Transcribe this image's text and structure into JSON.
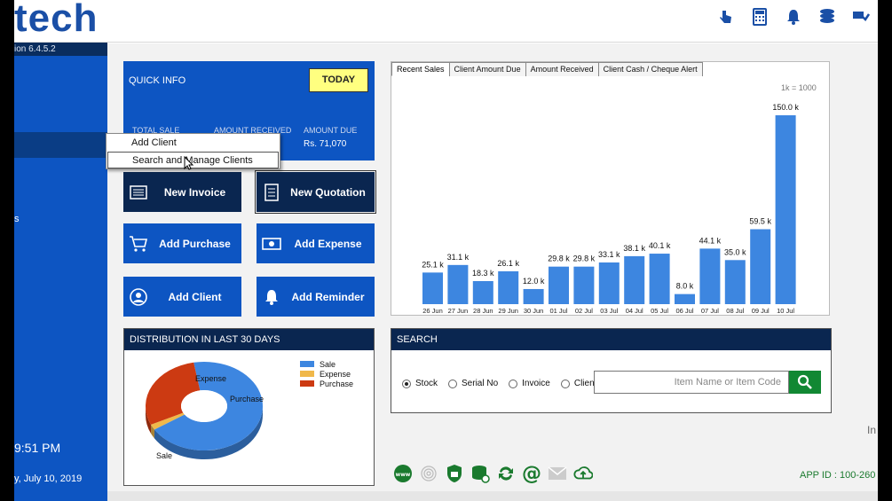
{
  "header": {
    "logo_text": "tech",
    "icons": [
      "touch-icon",
      "calculator-icon",
      "bell-icon",
      "coins-icon",
      "database-settings-icon"
    ]
  },
  "sidebar": {
    "version": "ion 6.4.5.2",
    "item_fragment": "s",
    "time": "9:51 PM",
    "date": "y, July 10, 2019"
  },
  "quick_info": {
    "title": "QUICK INFO",
    "today_button": "TODAY",
    "col1_label": "TOTAL SALE",
    "col2_label": "AMOUNT RECEIVED",
    "col3_label": "AMOUNT DUE",
    "col3_value": "Rs. 71,070"
  },
  "context_menu": {
    "items": [
      "Add Client",
      "Search and Manage Clients"
    ]
  },
  "tiles": {
    "new_invoice": "New Invoice",
    "new_quotation": "New Quotation",
    "add_purchase": "Add Purchase",
    "add_expense": "Add Expense",
    "add_client": "Add Client",
    "add_reminder": "Add Reminder"
  },
  "distribution": {
    "title": "DISTRIBUTION IN LAST 30 DAYS",
    "legend": [
      {
        "label": "Sale",
        "color": "#3d86e0"
      },
      {
        "label": "Expense",
        "color": "#f0b84a"
      },
      {
        "label": "Purchase",
        "color": "#cc3a12"
      }
    ],
    "slice_labels": {
      "sale": "Sale",
      "expense": "Expense",
      "purchase": "Purchase"
    }
  },
  "sales_tabs": [
    "Recent Sales",
    "Client Amount Due",
    "Amount Received",
    "Client Cash / Cheque Alert"
  ],
  "unit_note": "1k = 1000",
  "search": {
    "title": "SEARCH",
    "options": [
      {
        "label": "Stock",
        "selected": true
      },
      {
        "label": "Serial No",
        "selected": false
      },
      {
        "label": "Invoice",
        "selected": false
      },
      {
        "label": "Client",
        "selected": false
      }
    ],
    "placeholder": "Item Name or Item Code"
  },
  "footer": {
    "icons": [
      "www-icon",
      "fingerprint-icon",
      "shield-icon",
      "database-sync-icon",
      "refresh-icon",
      "at-icon",
      "mail-icon",
      "cloud-upload-icon"
    ],
    "app_id": "APP ID : 100-260",
    "stray_text": "In"
  },
  "chart_data": [
    {
      "type": "bar",
      "categories": [
        "26 Jun",
        "27 Jun",
        "28 Jun",
        "29 Jun",
        "30 Jun",
        "01 Jul",
        "02 Jul",
        "03 Jul",
        "04 Jul",
        "05 Jul",
        "06 Jul",
        "07 Jul",
        "08 Jul",
        "09 Jul",
        "10 Jul"
      ],
      "values": [
        25.1,
        31.1,
        18.3,
        26.1,
        12.0,
        29.8,
        29.8,
        33.1,
        38.1,
        40.1,
        8.0,
        44.1,
        35.0,
        59.5,
        150.0
      ],
      "data_labels": [
        "25.1 k",
        "31.1 k",
        "18.3 k",
        "26.1 k",
        "12.0 k",
        "29.8 k",
        "29.8 k",
        "33.1 k",
        "38.1 k",
        "40.1 k",
        "8.0 k",
        "44.1 k",
        "35.0 k",
        "59.5 k",
        "150.0 k"
      ],
      "color": "#3d86e0",
      "ylim": [
        0,
        150
      ]
    },
    {
      "type": "pie",
      "style": "donut-3d",
      "categories": [
        "Sale",
        "Expense",
        "Purchase"
      ],
      "values": [
        69,
        2,
        29
      ],
      "colors": [
        "#3d86e0",
        "#f0b84a",
        "#cc3a12"
      ]
    }
  ]
}
